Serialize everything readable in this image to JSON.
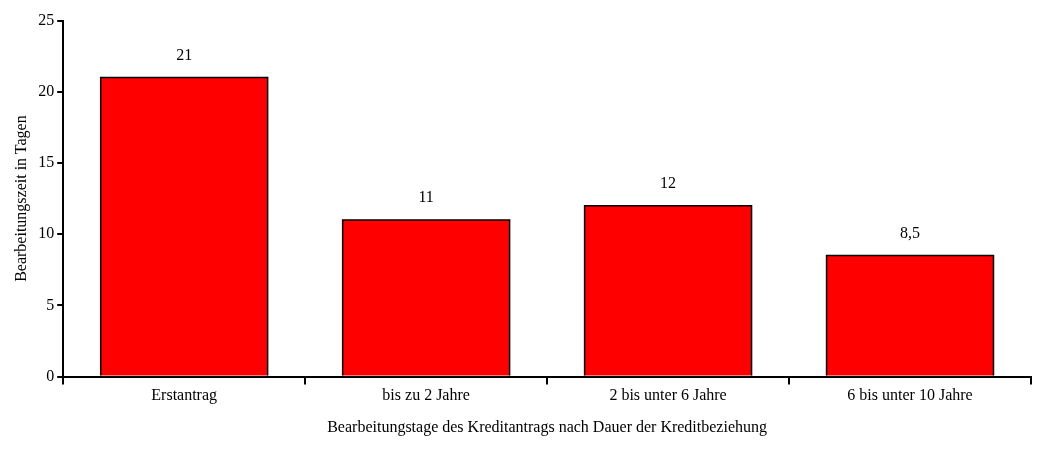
{
  "chart_data": {
    "type": "bar",
    "xlabel": "Bearbeitungstage des Kreditantrags nach Dauer der Kreditbeziehung",
    "ylabel": "Bearbeitungszeit in Tagen",
    "categories": [
      "Erstantrag",
      "bis zu 2 Jahre",
      "2 bis unter 6 Jahre",
      "6 bis unter 10 Jahre"
    ],
    "values": [
      21,
      11,
      12,
      8.5
    ],
    "value_labels": [
      "21",
      "11",
      "12",
      "8,5"
    ],
    "color": "#ff0000",
    "ylim": [
      0,
      25
    ],
    "yticks": [
      0,
      5,
      10,
      15,
      20,
      25
    ],
    "grid": false,
    "legend": false
  }
}
